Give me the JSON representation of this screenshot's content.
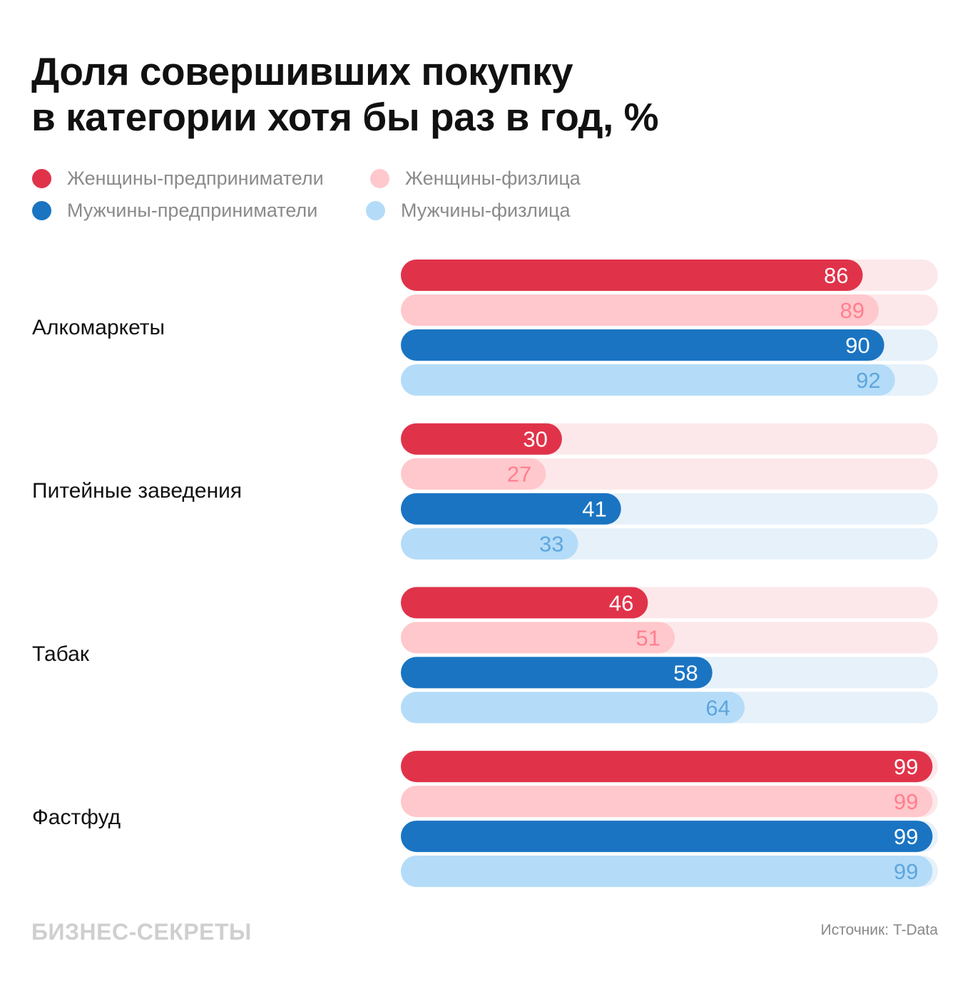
{
  "chart_data": {
    "type": "bar",
    "orientation": "horizontal",
    "title": "Доля совершивших покупку в категории хотя бы раз в год, %",
    "title_lines": [
      "Доля совершивших покупку",
      "в категории хотя бы раз в год, %"
    ],
    "xlim": [
      0,
      100
    ],
    "grid": false,
    "legend_position": "top-left",
    "categories": [
      "Алкомаркеты",
      "Питейные заведения",
      "Табак",
      "Фастфуд"
    ],
    "series": [
      {
        "name": "Женщины-предприниматели",
        "color": "#e0334a",
        "track_color": "#fce8ea",
        "label_color": "#ffffff",
        "values": [
          86,
          30,
          46,
          99
        ]
      },
      {
        "name": "Женщины-физлица",
        "color": "#ffc8cc",
        "track_color": "#fce8ea",
        "label_color": "#ff7f8f",
        "values": [
          89,
          27,
          51,
          99
        ]
      },
      {
        "name": "Мужчины-предприниматели",
        "color": "#1a74c2",
        "track_color": "#e6f1fa",
        "label_color": "#ffffff",
        "values": [
          90,
          41,
          58,
          99
        ]
      },
      {
        "name": "Мужчины-физлица",
        "color": "#b4dcf8",
        "track_color": "#e6f1fa",
        "label_color": "#5fa6de",
        "values": [
          92,
          33,
          64,
          99
        ]
      }
    ]
  },
  "footer": {
    "brand": "БИЗНЕС-СЕКРЕТЫ",
    "source": "Источник: T-Data"
  }
}
